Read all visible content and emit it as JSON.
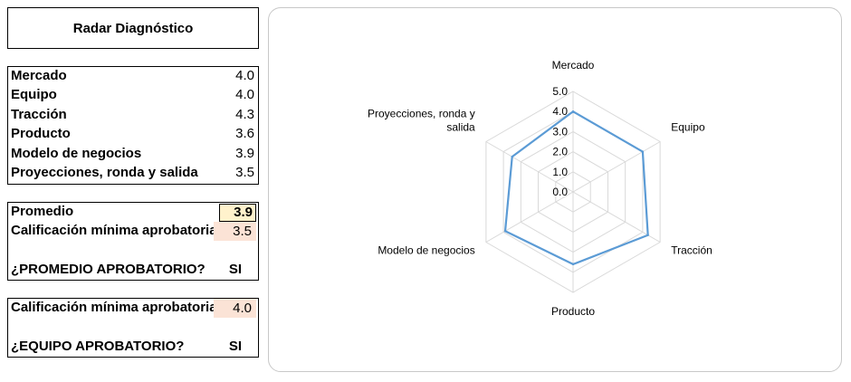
{
  "header": {
    "title": "Radar Diagnóstico"
  },
  "scores": [
    {
      "label": "Mercado",
      "value": "4.0"
    },
    {
      "label": "Equipo",
      "value": "4.0"
    },
    {
      "label": "Tracción",
      "value": "4.3"
    },
    {
      "label": "Producto",
      "value": "3.6"
    },
    {
      "label": "Modelo de negocios",
      "value": "3.9"
    },
    {
      "label": "Proyecciones, ronda y salida",
      "value": "3.5"
    }
  ],
  "evaluation": {
    "average_label": "Promedio",
    "average_value": "3.9",
    "min_label": "Calificación mínima aprobatoria",
    "min_value": "3.5",
    "question": "¿PROMEDIO APROBATORIO?",
    "answer": "SI"
  },
  "team_evaluation": {
    "min_label": "Calificación mínima aprobatoria",
    "min_value": "4.0",
    "question": "¿EQUIPO APROBATORIO?",
    "answer": "SI"
  },
  "chart_data": {
    "type": "radar",
    "categories": [
      "Mercado",
      "Equipo",
      "Tracción",
      "Producto",
      "Modelo de negocios",
      "Proyecciones, ronda y salida"
    ],
    "category_label_lines": [
      [
        "Mercado"
      ],
      [
        "Equipo"
      ],
      [
        "Tracción"
      ],
      [
        "Producto"
      ],
      [
        "Modelo de negocios"
      ],
      [
        "Proyecciones, ronda y",
        "salida"
      ]
    ],
    "series": [
      {
        "values": [
          4.0,
          4.0,
          4.3,
          3.6,
          3.9,
          3.5
        ],
        "color": "#5b9bd5"
      }
    ],
    "rlim": [
      0,
      5
    ],
    "ticks": [
      "0.0",
      "1.0",
      "2.0",
      "3.0",
      "4.0",
      "5.0"
    ],
    "grid_color": "#d9d9d9"
  }
}
